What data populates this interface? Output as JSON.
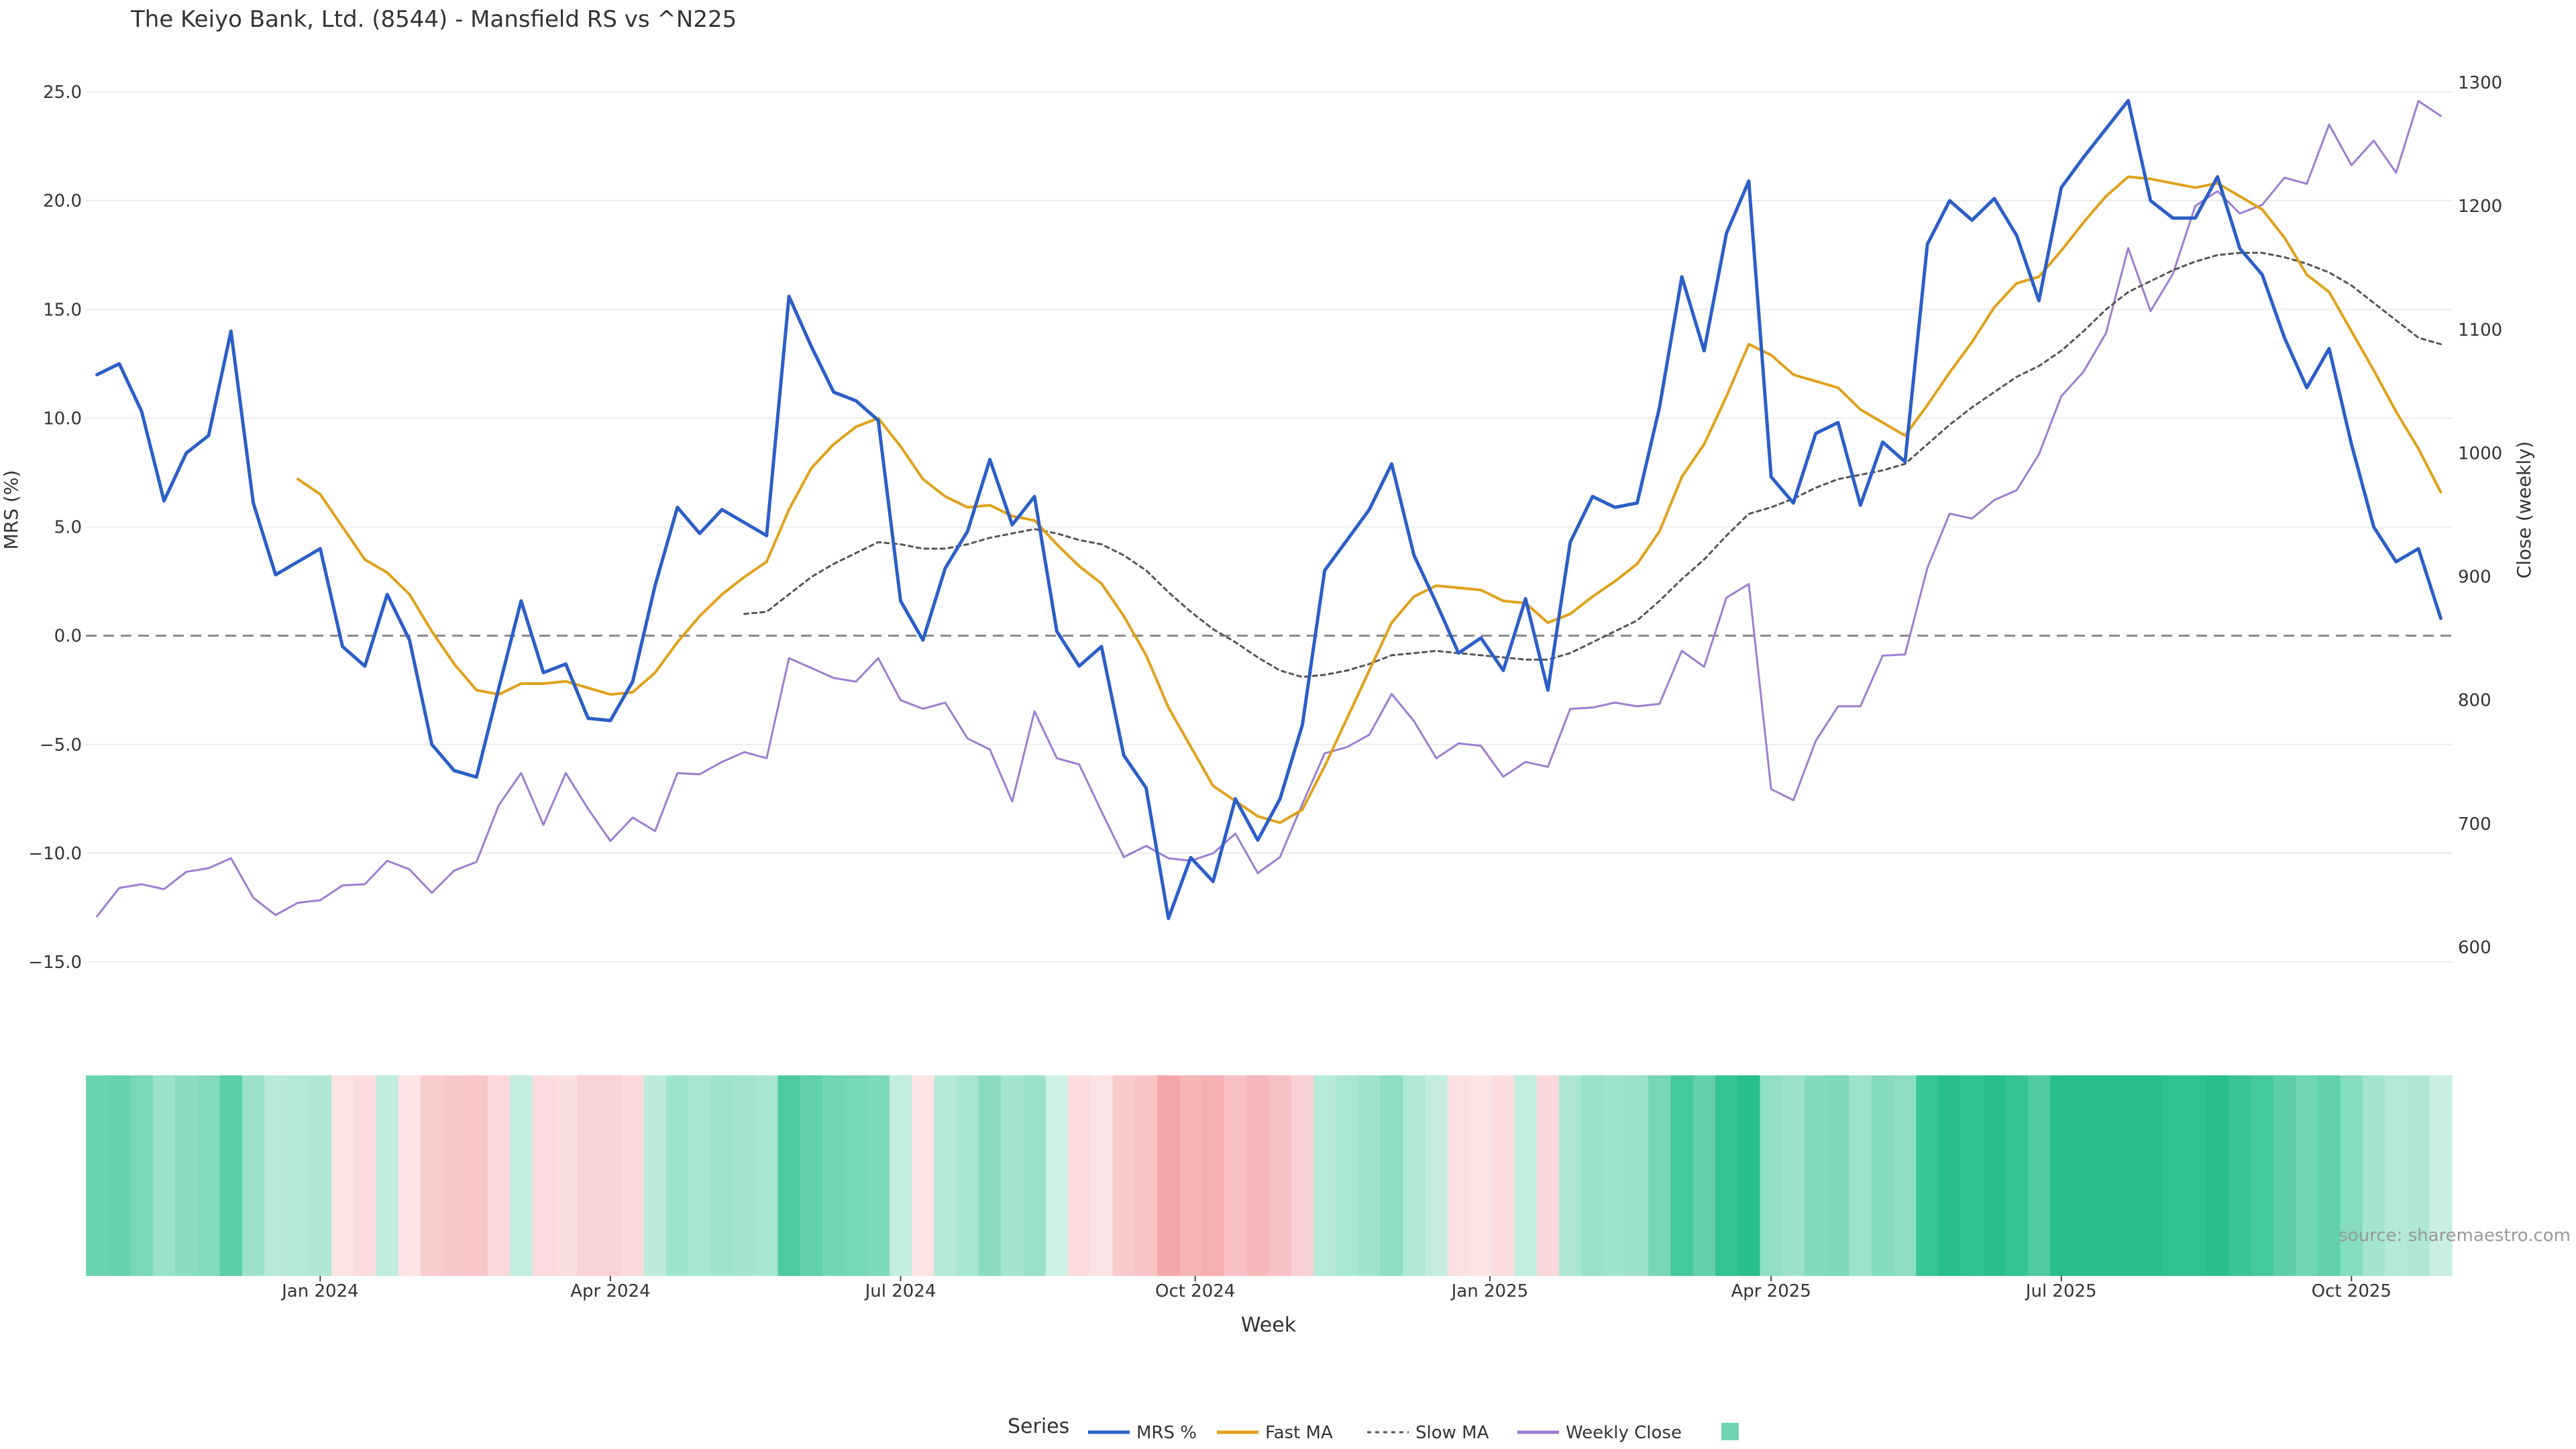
{
  "chart_data": {
    "type": "line",
    "title": "The Keiyo Bank, Ltd. (8544) - Mansfield RS vs ^N225",
    "xlabel": "Week",
    "ylabel": "MRS (%)",
    "y2label": "Close (weekly)",
    "source": "source: sharemaestro.com",
    "ylim": [
      -17.0,
      27.0
    ],
    "y2lim": [
      580,
      1310
    ],
    "yticks": [
      -15,
      -10,
      -5,
      0,
      5,
      10,
      15,
      20,
      25
    ],
    "ytick_labels": [
      "−15.0",
      "−10.0",
      "−5.0",
      "0.0",
      "5.0",
      "10.0",
      "15.0",
      "20.0",
      "25.0"
    ],
    "y2ticks": [
      600,
      700,
      800,
      900,
      1000,
      1100,
      1200,
      1300
    ],
    "y2tick_labels": [
      "600",
      "700",
      "800",
      "900",
      "1000",
      "1100",
      "1200",
      "1300"
    ],
    "xticks": [
      {
        "label": "Jan 2024",
        "x": 10
      },
      {
        "label": "Apr 2024",
        "x": 23
      },
      {
        "label": "Jul 2024",
        "x": 36
      },
      {
        "label": "Oct 2024",
        "x": 49.2
      },
      {
        "label": "Jan 2025",
        "x": 62.4
      },
      {
        "label": "Apr 2025",
        "x": 75
      },
      {
        "label": "Jul 2025",
        "x": 88
      },
      {
        "label": "Oct 2025",
        "x": 101
      }
    ],
    "xlim": [
      -0.5,
      105.5
    ],
    "legend": {
      "title": "Series",
      "position": "bottom-center",
      "entries": [
        {
          "name": "MRS %",
          "color": "#2b5ec7",
          "style": "solid"
        },
        {
          "name": "Fast MA",
          "color": "#e0a11b",
          "style": "solid"
        },
        {
          "name": "Slow MA",
          "color": "#555555",
          "style": "dotted"
        },
        {
          "name": "Weekly Close",
          "color": "#9b7fd0",
          "style": "solid"
        },
        {
          "name": "",
          "color": "#6fd3b2",
          "style": "swatch"
        }
      ]
    },
    "series": [
      {
        "name": "MRS %",
        "axis": "left",
        "values": [
          12.0,
          12.5,
          10.3,
          6.2,
          8.4,
          9.2,
          14.0,
          6.1,
          2.8,
          3.4,
          4.0,
          -0.5,
          -1.4,
          1.9,
          -0.2,
          -5.0,
          -6.2,
          -6.5,
          -2.4,
          1.6,
          -1.7,
          -1.3,
          -3.8,
          -3.9,
          -2.1,
          2.3,
          5.9,
          4.7,
          5.8,
          5.2,
          4.6,
          15.6,
          13.3,
          11.2,
          10.8,
          9.9,
          1.6,
          -0.2,
          3.1,
          4.8,
          8.1,
          5.1,
          6.4,
          0.2,
          -1.4,
          -0.5,
          -5.5,
          -7.0,
          -13.0,
          -10.2,
          -11.3,
          -7.5,
          -9.4,
          -7.5,
          -4.1,
          3.0,
          4.4,
          5.8,
          7.9,
          3.7,
          1.5,
          -0.8,
          -0.1,
          -1.6,
          1.7,
          -2.5,
          4.3,
          6.4,
          5.9,
          6.1,
          10.5,
          16.5,
          13.1,
          18.5,
          20.9,
          7.3,
          6.1,
          9.3,
          9.8,
          6.0,
          8.9,
          8.0,
          18.0,
          20.0,
          19.1,
          20.1,
          18.4,
          15.4,
          20.6,
          22.0,
          23.3,
          24.6,
          20.0,
          19.2,
          19.2,
          21.1,
          17.8,
          16.6,
          13.7,
          11.4,
          13.2,
          8.8,
          5.0,
          3.4,
          4.0,
          0.8
        ]
      },
      {
        "name": "Fast MA",
        "axis": "left",
        "values": [
          null,
          null,
          null,
          null,
          null,
          null,
          null,
          null,
          null,
          7.2,
          6.5,
          5.0,
          3.5,
          2.9,
          1.9,
          0.2,
          -1.3,
          -2.5,
          -2.7,
          -2.2,
          -2.2,
          -2.1,
          -2.4,
          -2.7,
          -2.6,
          -1.7,
          -0.3,
          0.9,
          1.9,
          2.7,
          3.4,
          5.8,
          7.7,
          8.8,
          9.6,
          10.0,
          8.7,
          7.2,
          6.4,
          5.9,
          6.0,
          5.5,
          5.3,
          4.2,
          3.2,
          2.4,
          0.9,
          -0.9,
          -3.3,
          -5.1,
          -6.9,
          -7.6,
          -8.3,
          -8.6,
          -8.0,
          -6.0,
          -3.8,
          -1.6,
          0.6,
          1.8,
          2.3,
          2.2,
          2.1,
          1.6,
          1.5,
          0.6,
          1.0,
          1.8,
          2.5,
          3.3,
          4.8,
          7.3,
          8.8,
          11.0,
          13.4,
          12.9,
          12.0,
          11.7,
          11.4,
          10.4,
          9.8,
          9.2,
          10.6,
          12.1,
          13.5,
          15.1,
          16.2,
          16.5,
          17.7,
          19.0,
          20.2,
          21.1,
          21.0,
          20.8,
          20.6,
          20.8,
          20.2,
          19.6,
          18.3,
          16.6,
          15.8,
          14.0,
          12.2,
          10.3,
          8.6,
          6.6
        ]
      },
      {
        "name": "Slow MA",
        "axis": "left",
        "values": [
          null,
          null,
          null,
          null,
          null,
          null,
          null,
          null,
          null,
          null,
          null,
          null,
          null,
          null,
          null,
          null,
          null,
          null,
          null,
          null,
          null,
          null,
          null,
          null,
          null,
          null,
          null,
          null,
          null,
          1.0,
          1.1,
          1.9,
          2.7,
          3.3,
          3.8,
          4.3,
          4.2,
          4.0,
          4.0,
          4.2,
          4.5,
          4.7,
          4.9,
          4.7,
          4.4,
          4.2,
          3.7,
          3.0,
          2.0,
          1.1,
          0.3,
          -0.3,
          -1.0,
          -1.6,
          -1.9,
          -1.8,
          -1.6,
          -1.3,
          -0.9,
          -0.8,
          -0.7,
          -0.8,
          -0.9,
          -1.0,
          -1.1,
          -1.1,
          -0.8,
          -0.3,
          0.2,
          0.7,
          1.6,
          2.6,
          3.5,
          4.6,
          5.6,
          5.9,
          6.3,
          6.8,
          7.2,
          7.4,
          7.6,
          7.9,
          8.8,
          9.7,
          10.5,
          11.2,
          11.9,
          12.4,
          13.1,
          14.0,
          15.0,
          15.8,
          16.3,
          16.8,
          17.2,
          17.5,
          17.6,
          17.6,
          17.4,
          17.1,
          16.7,
          16.1,
          15.3,
          14.5,
          13.7,
          13.4
        ]
      },
      {
        "name": "Weekly Close",
        "axis": "right",
        "values": [
          625,
          648,
          651,
          647,
          661,
          664,
          672,
          640,
          626,
          636,
          638,
          650,
          651,
          670,
          663,
          644,
          662,
          669,
          715,
          741,
          699,
          741,
          712,
          686,
          705,
          694,
          741,
          740,
          750,
          758,
          753,
          834,
          826,
          818,
          815,
          834,
          800,
          793,
          798,
          769,
          760,
          718,
          791,
          753,
          748,
          710,
          673,
          682,
          672,
          670,
          676,
          692,
          660,
          673,
          716,
          757,
          762,
          772,
          805,
          783,
          753,
          765,
          763,
          738,
          750,
          746,
          793,
          794,
          798,
          795,
          797,
          840,
          827,
          883,
          894,
          728,
          719,
          767,
          795,
          795,
          836,
          837,
          907,
          951,
          947,
          962,
          970,
          999,
          1046,
          1066,
          1097,
          1166,
          1115,
          1145,
          1200,
          1212,
          1194,
          1201,
          1223,
          1218,
          1266,
          1233,
          1253,
          1227,
          1285,
          1273
        ]
      }
    ],
    "heatmap": {
      "label": "MRS regime strip",
      "values": [
        12.0,
        12.5,
        10.3,
        6.2,
        8.4,
        9.2,
        14.0,
        6.1,
        2.8,
        3.4,
        4.0,
        -0.5,
        -1.4,
        1.9,
        -0.2,
        -5.0,
        -6.2,
        -6.5,
        -2.4,
        1.6,
        -1.7,
        -1.3,
        -3.8,
        -3.9,
        -2.1,
        2.3,
        5.9,
        4.7,
        5.8,
        5.2,
        4.6,
        15.6,
        13.3,
        11.2,
        10.8,
        9.9,
        1.6,
        -0.2,
        3.1,
        4.8,
        8.1,
        5.1,
        6.4,
        0.2,
        -1.4,
        -0.5,
        -5.5,
        -7.0,
        -13.0,
        -10.2,
        -11.3,
        -7.5,
        -9.4,
        -7.5,
        -4.1,
        3.0,
        4.4,
        5.8,
        7.9,
        3.7,
        1.5,
        -0.8,
        -0.1,
        -1.6,
        1.7,
        -2.5,
        4.3,
        6.4,
        5.9,
        6.1,
        10.5,
        16.5,
        13.1,
        18.5,
        20.9,
        7.3,
        6.1,
        9.3,
        9.8,
        6.0,
        8.9,
        8.0,
        18.0,
        20.0,
        19.1,
        20.1,
        18.4,
        15.4,
        20.6,
        22.0,
        23.3,
        24.6,
        20.0,
        19.2,
        19.2,
        21.1,
        17.8,
        16.6,
        13.7,
        11.4,
        13.2,
        8.8,
        5.0,
        3.4,
        4.0,
        0.8
      ],
      "positive_color": "#27c08d",
      "negative_color": "#f0858a"
    },
    "colors": {
      "mrs": "#2b5ec7",
      "fast": "#e0a11b",
      "slow": "#555555",
      "close": "#9b7fd0",
      "zero_line": "#888888",
      "grid": "#ececec",
      "text": "#333333"
    }
  }
}
